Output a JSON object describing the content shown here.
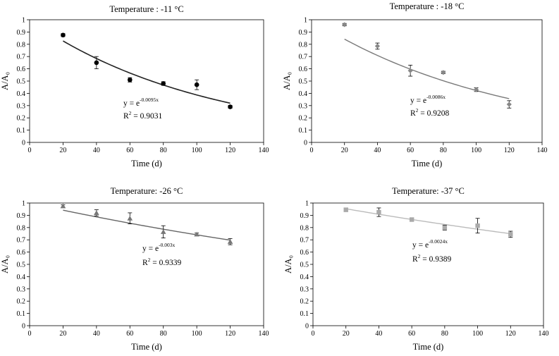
{
  "chart_data": [
    {
      "type": "scatter",
      "title": "Temperature : -11 °C",
      "xlabel": "Time (d)",
      "ylabel": "A/A₀",
      "xlim": [
        0,
        140
      ],
      "ylim": [
        0,
        1.0
      ],
      "x_ticks": [
        "0",
        "20",
        "40",
        "60",
        "80",
        "100",
        "120",
        "140"
      ],
      "y_ticks": [
        "0",
        "0.1",
        "0.2",
        "0.3",
        "0.4",
        "0.5",
        "0.6",
        "0.7",
        "0.8",
        "0.9",
        "1"
      ],
      "marker": "circle",
      "color": "#000000",
      "fit_color": "#222222",
      "x": [
        20,
        40,
        60,
        80,
        100,
        120
      ],
      "y": [
        0.875,
        0.65,
        0.51,
        0.48,
        0.47,
        0.29
      ],
      "err": [
        0.012,
        0.05,
        0.018,
        0.015,
        0.04,
        0.012
      ],
      "fit_k": 0.0095,
      "fit_range": [
        20,
        120
      ],
      "eq_base": "y = e",
      "eq_exp": "-0.0095x",
      "r2_prefix": "R",
      "r2_sup": "2",
      "r2_value": " = 0.9031"
    },
    {
      "type": "scatter",
      "title": "Temperature : -18 °C",
      "xlabel": "Time (d)",
      "ylabel": "A/A₀",
      "xlim": [
        0,
        140
      ],
      "ylim": [
        0,
        1.0
      ],
      "x_ticks": [
        "0",
        "20",
        "40",
        "60",
        "80",
        "100",
        "120",
        "140"
      ],
      "y_ticks": [
        "0",
        "0.1",
        "0.2",
        "0.3",
        "0.4",
        "0.5",
        "0.6",
        "0.7",
        "0.8",
        "0.9",
        "1"
      ],
      "marker": "diamond",
      "color": "#888888",
      "fit_color": "#7a7a7a",
      "x": [
        20,
        40,
        60,
        80,
        100,
        120
      ],
      "y": [
        0.96,
        0.785,
        0.585,
        0.57,
        0.43,
        0.31
      ],
      "err": [
        0.01,
        0.025,
        0.045,
        0.01,
        0.015,
        0.03
      ],
      "fit_k": 0.0086,
      "fit_range": [
        20,
        120
      ],
      "eq_base": "y = e",
      "eq_exp": "-0.0086x",
      "r2_prefix": "R",
      "r2_sup": "2",
      "r2_value": " = 0.9208"
    },
    {
      "type": "scatter",
      "title": "Temperature: -26 °C",
      "xlabel": "Time (d)",
      "ylabel": "A/A₀",
      "xlim": [
        0,
        140
      ],
      "ylim": [
        0,
        1.0
      ],
      "x_ticks": [
        "0",
        "20",
        "40",
        "60",
        "80",
        "100",
        "120",
        "140"
      ],
      "y_ticks": [
        "0",
        "0.1",
        "0.2",
        "0.3",
        "0.4",
        "0.5",
        "0.6",
        "0.7",
        "0.8",
        "0.9",
        "1"
      ],
      "marker": "triangle",
      "color": "#777777",
      "fit_color": "#666666",
      "x": [
        20,
        40,
        60,
        80,
        100,
        120
      ],
      "y": [
        0.975,
        0.92,
        0.875,
        0.765,
        0.745,
        0.685
      ],
      "err": [
        0.01,
        0.025,
        0.045,
        0.05,
        0.01,
        0.025
      ],
      "fit_k": 0.003,
      "fit_range": [
        20,
        120
      ],
      "eq_base": "y = e",
      "eq_exp": "-0.003x",
      "r2_prefix": "R",
      "r2_sup": "2",
      "r2_value": " = 0.9339"
    },
    {
      "type": "scatter",
      "title": "Temperature: -37 °C",
      "xlabel": "Time (d)",
      "ylabel": "A/A₀",
      "xlim": [
        0,
        140
      ],
      "ylim": [
        0,
        1.0
      ],
      "x_ticks": [
        "0",
        "20",
        "40",
        "60",
        "80",
        "100",
        "120",
        "140"
      ],
      "y_ticks": [
        "0",
        "0.1",
        "0.2",
        "0.3",
        "0.4",
        "0.5",
        "0.6",
        "0.7",
        "0.8",
        "0.9",
        "1"
      ],
      "marker": "square",
      "color": "#aaaaaa",
      "fit_color": "#bbbbbb",
      "x": [
        20,
        40,
        60,
        80,
        100,
        120
      ],
      "y": [
        0.945,
        0.925,
        0.865,
        0.8,
        0.815,
        0.745
      ],
      "err": [
        0.015,
        0.035,
        0.01,
        0.02,
        0.06,
        0.025
      ],
      "fit_k": 0.0024,
      "fit_range": [
        20,
        120
      ],
      "eq_base": "y = e",
      "eq_exp": "-0.0024x",
      "r2_prefix": "R",
      "r2_sup": "2",
      "r2_value": " = 0.9389"
    }
  ]
}
